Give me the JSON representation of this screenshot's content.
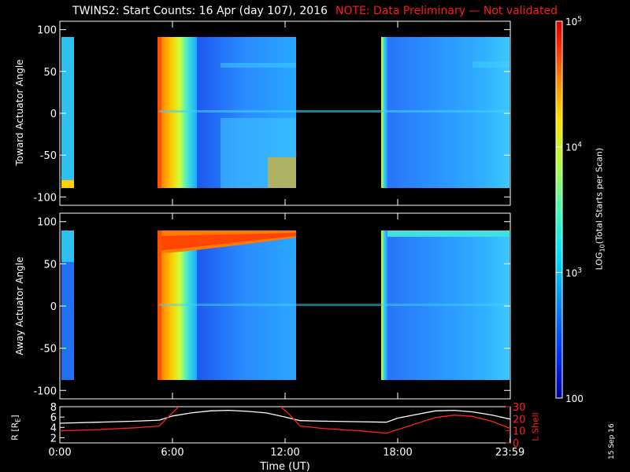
{
  "title": {
    "main": "TWINS2: Start Counts: 16 Apr (day 107), 2016",
    "note": "NOTE: Data Preliminary — Not validated",
    "note_color": "#ff1a1a"
  },
  "date_stamp": "15 Sep 16",
  "chart_data": [
    {
      "type": "heatmap",
      "panel": "top",
      "ylabel": "Toward Actuator Angle",
      "ylim": [
        -110,
        110
      ],
      "yticks": [
        100,
        50,
        0,
        -50,
        -100
      ],
      "xlim_hours": [
        0,
        24
      ],
      "data_gaps_hours": [
        [
          0.5,
          5.4
        ],
        [
          12.8,
          17.5
        ]
      ],
      "intensity_notes": "high counts (red/orange) near 5.5-7 UT, blue-cyan elsewhere"
    },
    {
      "type": "heatmap",
      "panel": "middle",
      "ylabel": "Away Actuator Angle",
      "ylim": [
        -110,
        110
      ],
      "yticks": [
        100,
        50,
        0,
        -50,
        -100
      ],
      "xlim_hours": [
        0,
        24
      ],
      "data_gaps_hours": [
        [
          0.5,
          5.4
        ],
        [
          12.8,
          17.5
        ]
      ],
      "intensity_notes": "high counts (red/orange) near 5.5-7 UT and along +70..+90 deg band until 12 UT"
    },
    {
      "type": "line",
      "panel": "bottom",
      "ylabel_left": "R [R",
      "ylabel_left_sub": "E",
      "ylabel_right": "L Shell",
      "ylim_left": [
        1,
        8
      ],
      "yticks_left": [
        8,
        6,
        4,
        2
      ],
      "ylim_right": [
        0,
        30
      ],
      "yticks_right": [
        30,
        20,
        10,
        0
      ],
      "xticks": [
        "0:00",
        "6:00",
        "12:00",
        "18:00",
        "23:59"
      ],
      "xtick_hours": [
        0,
        6,
        12,
        18,
        23.983
      ],
      "xlabel": "Time (UT)",
      "series": [
        {
          "name": "R",
          "color": "#ffffff",
          "axis": "left",
          "x": [
            0,
            2,
            4,
            5.3,
            6,
            7,
            8,
            9,
            10,
            11,
            12,
            12.8,
            14,
            16,
            17.4,
            18,
            19,
            20,
            21,
            22,
            23,
            24
          ],
          "y": [
            4.8,
            5.0,
            5.2,
            5.4,
            6.2,
            6.8,
            7.2,
            7.3,
            7.1,
            6.8,
            6.0,
            5.3,
            5.2,
            5.1,
            5.0,
            5.8,
            6.5,
            7.2,
            7.3,
            7.0,
            6.4,
            5.6
          ]
        },
        {
          "name": "L Shell",
          "color": "#ff2020",
          "axis": "right",
          "x": [
            0,
            2,
            4,
            5.3,
            6,
            6.4,
            11.7,
            12.2,
            12.8,
            14,
            16,
            17.4,
            18,
            19,
            20,
            21,
            22,
            23,
            24
          ],
          "y": [
            10,
            11,
            12.5,
            14,
            25,
            31,
            31,
            24,
            14,
            12,
            10,
            8,
            11,
            16,
            21,
            23,
            22,
            18,
            12
          ]
        }
      ]
    }
  ],
  "colorbar": {
    "label": "LOG",
    "label_sub": "10",
    "label_rest": "(Total Starts per Scan)",
    "ticks": [
      {
        "base": "10",
        "exp": "5",
        "value": 100000
      },
      {
        "base": "10",
        "exp": "4",
        "value": 10000
      },
      {
        "base": "10",
        "exp": "3",
        "value": 1000
      },
      {
        "base": "100",
        "exp": "",
        "value": 100
      }
    ],
    "range": [
      100,
      100000
    ],
    "scale": "log",
    "colors": [
      "#0000a0",
      "#0030ff",
      "#0090ff",
      "#00e0ff",
      "#40ffb0",
      "#b0ff40",
      "#ffe000",
      "#ff8000",
      "#ff2000",
      "#d00000"
    ]
  }
}
